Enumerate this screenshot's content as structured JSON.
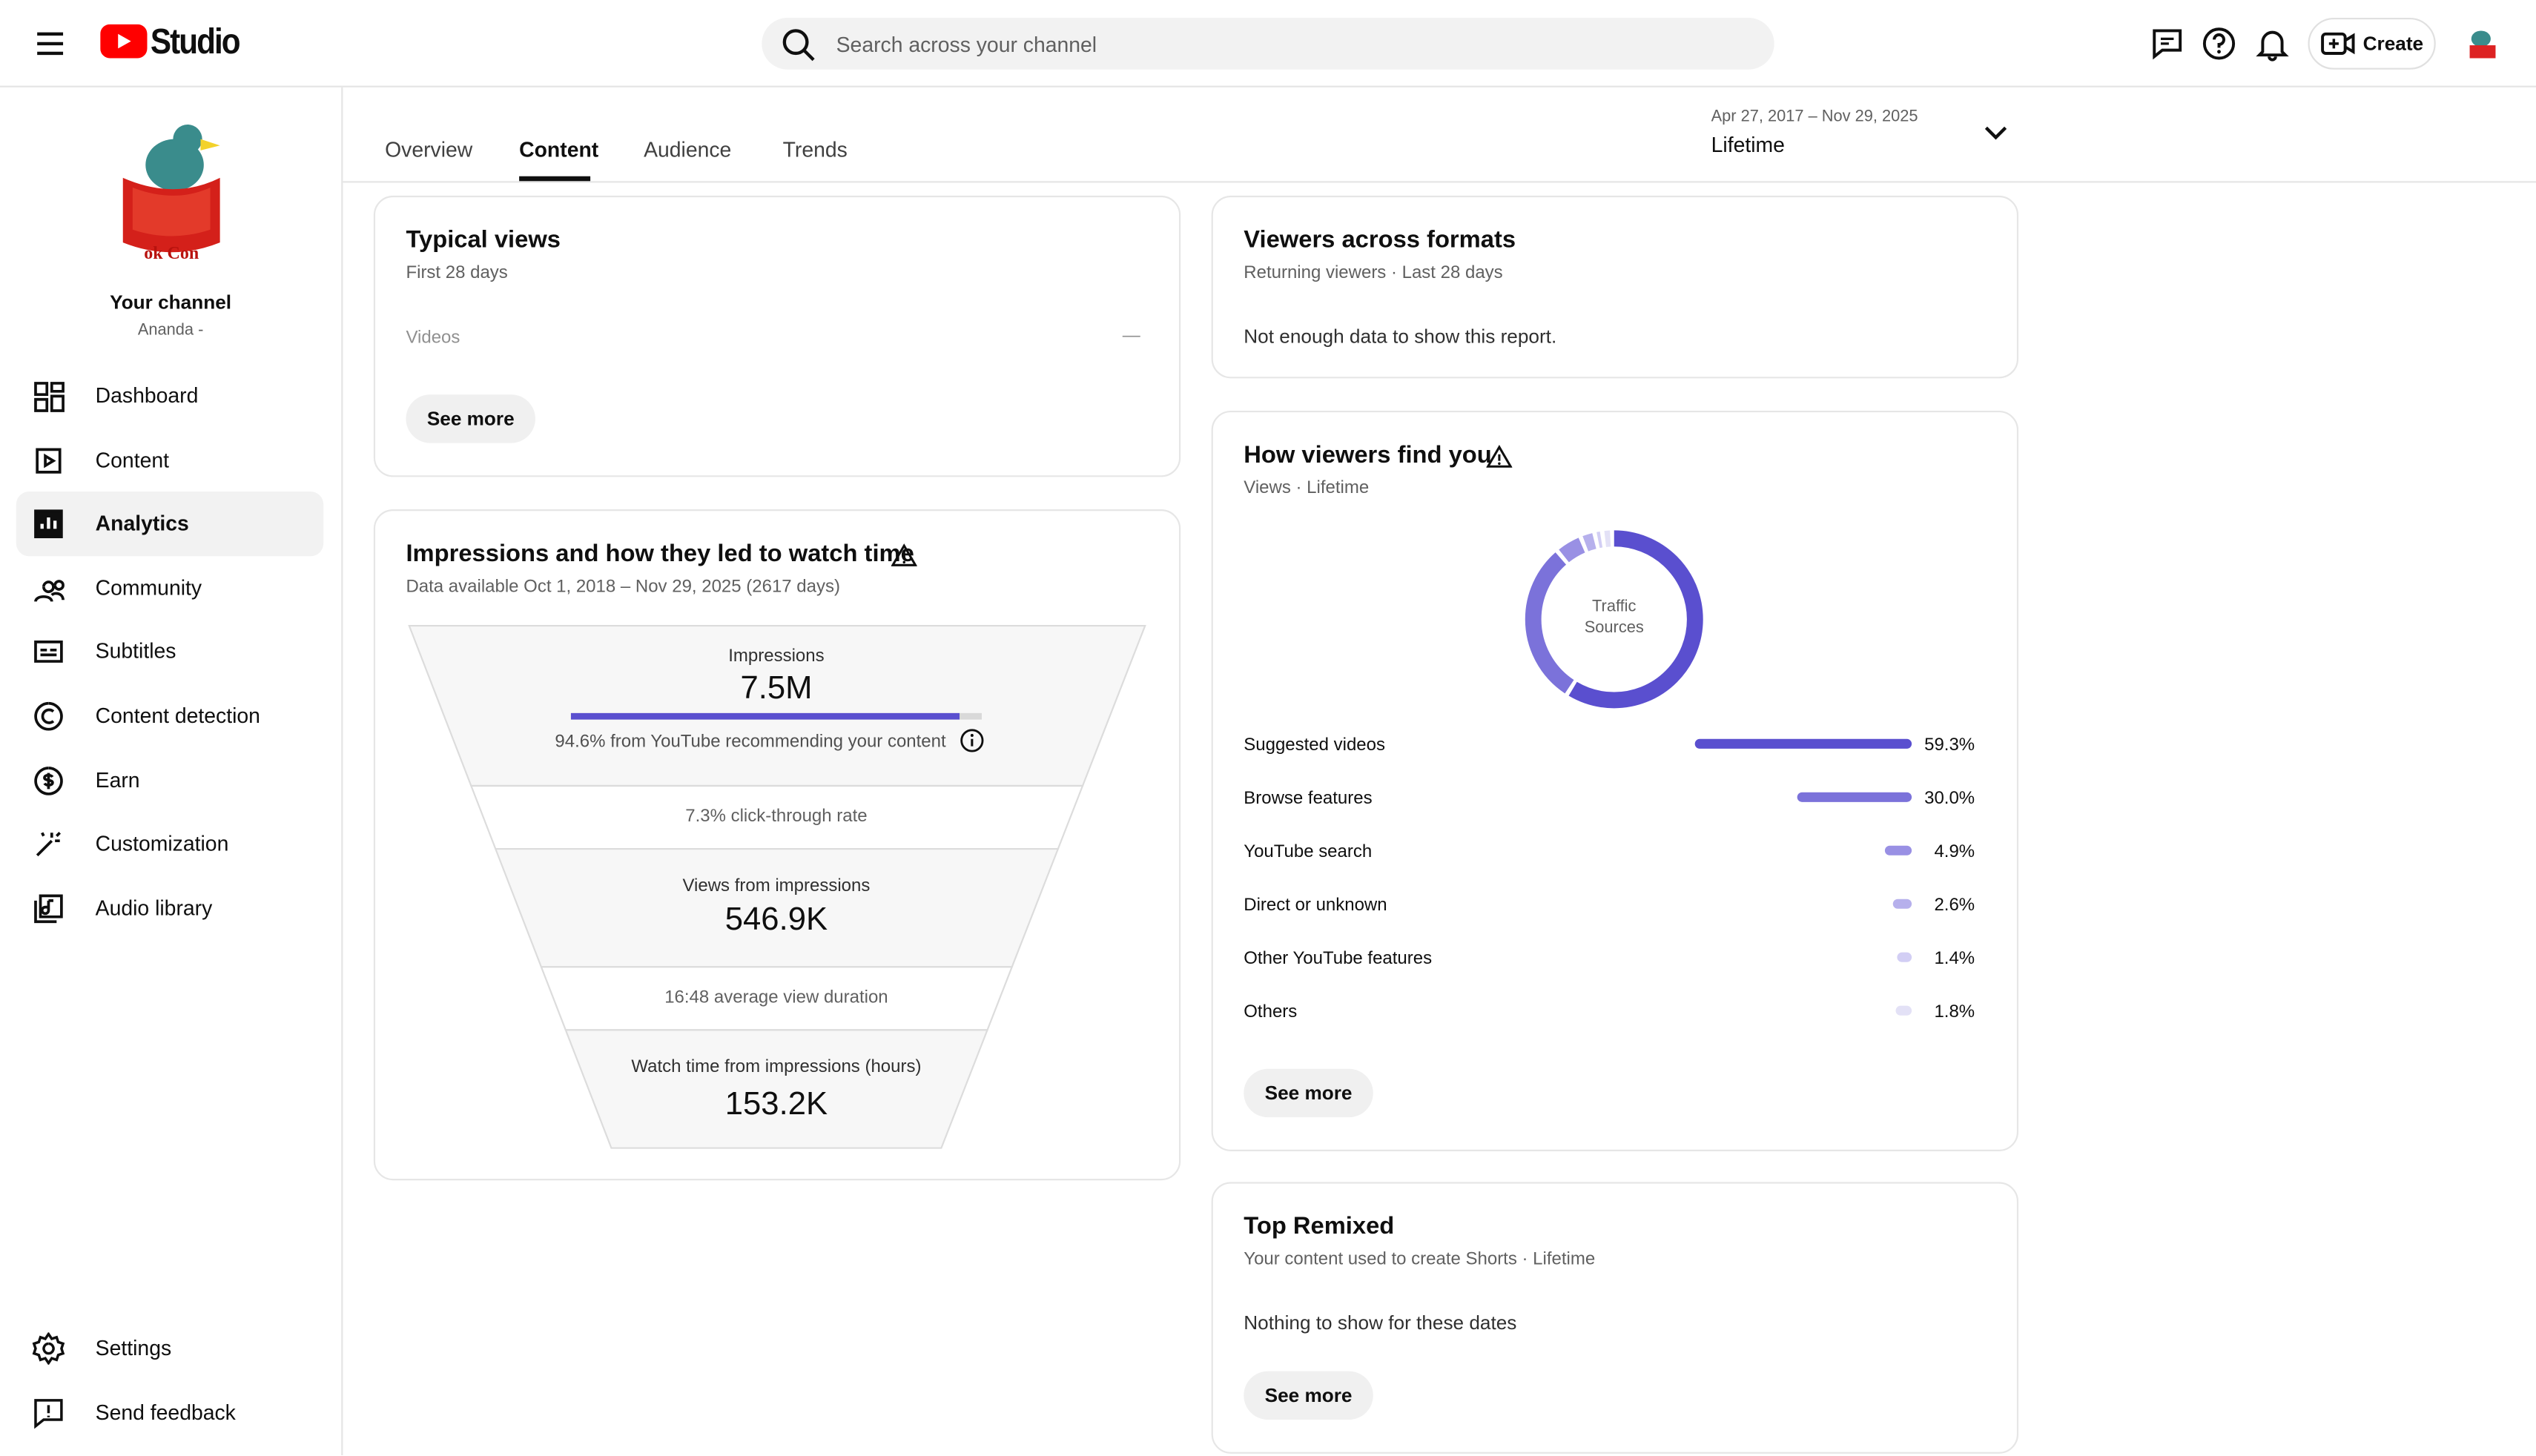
{
  "header": {
    "logo_text": "Studio",
    "search_placeholder": "Search across your channel",
    "create_button": "Create"
  },
  "sidebar": {
    "channel_title": "Your channel",
    "channel_name": "Ananda -",
    "items": [
      "Dashboard",
      "Content",
      "Analytics",
      "Community",
      "Subtitles",
      "Content detection",
      "Earn",
      "Customization",
      "Audio library"
    ],
    "footer_items": [
      "Settings",
      "Send feedback"
    ]
  },
  "tabs": [
    "Overview",
    "Content",
    "Audience",
    "Trends"
  ],
  "date_range": {
    "range": "Apr 27, 2017 – Nov 29, 2025",
    "label": "Lifetime"
  },
  "typical_views": {
    "title": "Typical views",
    "subtitle": "First 28 days",
    "row_label": "Videos",
    "row_value": "—",
    "button": "See more"
  },
  "impressions": {
    "title": "Impressions and how they led to watch time",
    "subtitle": "Data available Oct 1, 2018 – Nov 29, 2025 (2617 days)",
    "impressions_label": "Impressions",
    "impressions_value": "7.5M",
    "recommended_share": 94.6,
    "recommended_text": "94.6% from YouTube recommending your content",
    "ctr_text": "7.3% click-through rate",
    "views_label": "Views from impressions",
    "views_value": "546.9K",
    "avd_text": "16:48 average view duration",
    "watch_label": "Watch time from impressions (hours)",
    "watch_value": "153.2K"
  },
  "viewers_formats": {
    "title": "Viewers across formats",
    "subtitle": "Returning viewers · Last 28 days",
    "message": "Not enough data to show this report."
  },
  "traffic": {
    "title": "How viewers find you",
    "subtitle": "Views · Lifetime",
    "center_label": "Traffic Sources",
    "categories": [
      "Suggested videos",
      "Browse features",
      "YouTube search",
      "Direct or unknown",
      "Other YouTube features",
      "Others"
    ],
    "values": [
      59.3,
      30.0,
      4.9,
      2.6,
      1.4,
      1.8
    ],
    "value_labels": [
      "59.3%",
      "30.0%",
      "4.9%",
      "2.6%",
      "1.4%",
      "1.8%"
    ],
    "colors": [
      "#5a4fcf",
      "#7b72da",
      "#9990e4",
      "#b6b0ec",
      "#d2cef4",
      "#e3e1f6"
    ],
    "button": "See more"
  },
  "top_remixed": {
    "title": "Top Remixed",
    "subtitle": "Your content used to create Shorts · Lifetime",
    "message": "Nothing to show for these dates",
    "button": "See more"
  }
}
